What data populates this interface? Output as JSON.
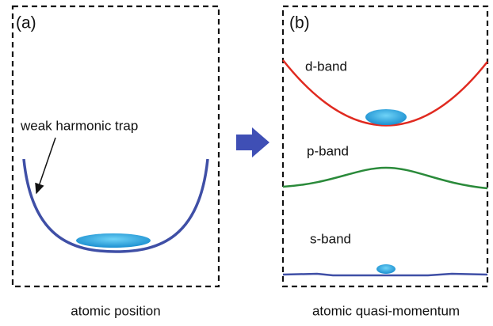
{
  "panels": [
    {
      "label": "(a)",
      "annotation": "weak harmonic trap",
      "caption": "atomic position"
    },
    {
      "label": "(b)",
      "bands": [
        "d-band",
        "p-band",
        "s-band"
      ],
      "caption": "atomic quasi-momentum"
    }
  ]
}
